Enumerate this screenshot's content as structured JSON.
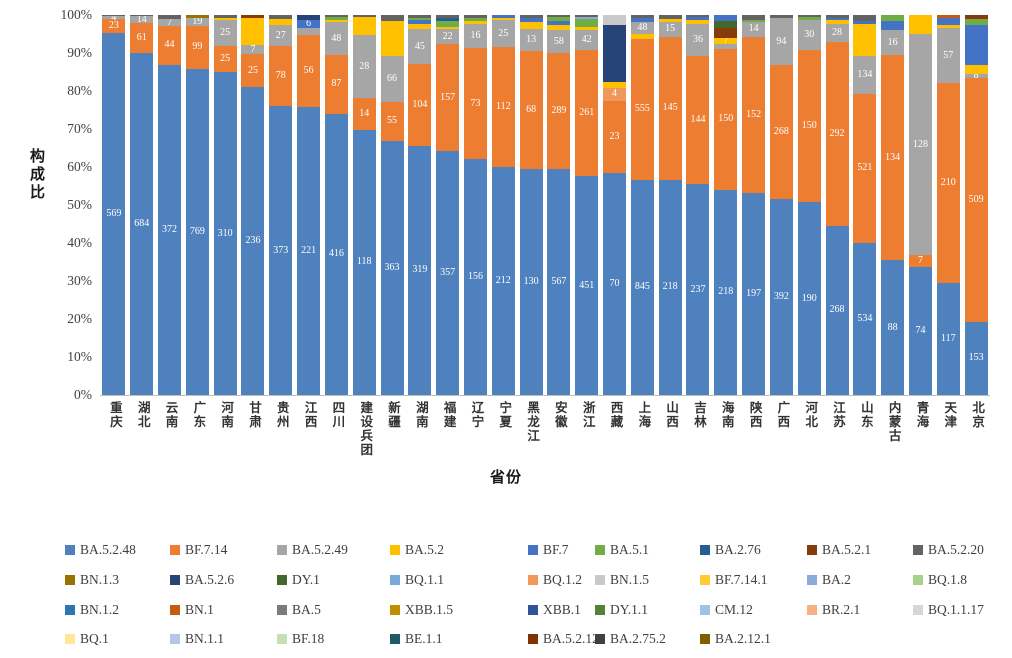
{
  "chart_data": {
    "type": "bar",
    "subtype": "100%-stacked-column",
    "title": "",
    "xlabel": "省份",
    "ylabel": "构成比",
    "ylim": [
      0,
      100
    ],
    "grid": false,
    "legend_position": "bottom",
    "yticks": [
      "0%",
      "10%",
      "20%",
      "30%",
      "40%",
      "50%",
      "60%",
      "70%",
      "80%",
      "90%",
      "100%"
    ],
    "legend": [
      {
        "name": "BA.5.2.48",
        "color": "#4E81BD"
      },
      {
        "name": "BF.7.14",
        "color": "#ED7D31"
      },
      {
        "name": "BA.5.2.49",
        "color": "#A6A6A6"
      },
      {
        "name": "BA.5.2",
        "color": "#FFC000"
      },
      {
        "name": "BF.7",
        "color": "#4472C4"
      },
      {
        "name": "BA.5.1",
        "color": "#70AD47"
      },
      {
        "name": "BA.2.76",
        "color": "#255E91"
      },
      {
        "name": "BA.5.2.1",
        "color": "#843C0C"
      },
      {
        "name": "BA.5.2.20",
        "color": "#636363"
      },
      {
        "name": "BN.1.3",
        "color": "#997300"
      },
      {
        "name": "BA.5.2.6",
        "color": "#264478"
      },
      {
        "name": "DY.1",
        "color": "#43682B"
      },
      {
        "name": "BQ.1.1",
        "color": "#74A9D8"
      },
      {
        "name": "BQ.1.2",
        "color": "#F1975A"
      },
      {
        "name": "BN.1.5",
        "color": "#C9C9C9"
      },
      {
        "name": "BF.7.14.1",
        "color": "#FFCD33"
      },
      {
        "name": "BA.2",
        "color": "#8EAADB"
      },
      {
        "name": "BQ.1.8",
        "color": "#A9D18E"
      },
      {
        "name": "BN.1.2",
        "color": "#2E75B6"
      },
      {
        "name": "BN.1",
        "color": "#C55A11"
      },
      {
        "name": "BA.5",
        "color": "#7B7B7B"
      },
      {
        "name": "XBB.1.5",
        "color": "#BF8F00"
      },
      {
        "name": "XBB.1",
        "color": "#2F5597"
      },
      {
        "name": "DY.1.1",
        "color": "#538135"
      },
      {
        "name": "CM.12",
        "color": "#9DC3E6"
      },
      {
        "name": "BR.2.1",
        "color": "#F4B183"
      },
      {
        "name": "BQ.1.1.17",
        "color": "#D6D6D6"
      },
      {
        "name": "BQ.1",
        "color": "#FFE699"
      },
      {
        "name": "BN.1.1",
        "color": "#B4C7E7"
      },
      {
        "name": "BF.18",
        "color": "#C5E0B4"
      },
      {
        "name": "BE.1.1",
        "color": "#215968"
      },
      {
        "name": "BA.5.2.12",
        "color": "#7F3300"
      },
      {
        "name": "BA.2.75.2",
        "color": "#404040"
      },
      {
        "name": "BA.2.12.1",
        "color": "#7F6000"
      }
    ],
    "bars": [
      {
        "province": "重庆",
        "segments": [
          [
            "BA.5.2.48",
            569,
            "569"
          ],
          [
            "BF.7.14",
            23,
            "23"
          ],
          [
            "BA.5.2.49",
            4,
            "4"
          ],
          [
            "BA.5.2.20",
            2,
            null
          ]
        ]
      },
      {
        "province": "湖北",
        "segments": [
          [
            "BA.5.2.48",
            684,
            "684"
          ],
          [
            "BF.7.14",
            61,
            "61"
          ],
          [
            "BA.5.2.49",
            14,
            "14"
          ],
          [
            "BA.5.2.20",
            2,
            null
          ]
        ]
      },
      {
        "province": "云南",
        "segments": [
          [
            "BA.5.2.48",
            372,
            "372"
          ],
          [
            "BF.7.14",
            44,
            "44"
          ],
          [
            "BA.5.2.49",
            7,
            "7"
          ],
          [
            "BA.5.2.20",
            5,
            null
          ]
        ]
      },
      {
        "province": "广东",
        "segments": [
          [
            "BA.5.2.48",
            769,
            "769"
          ],
          [
            "BF.7.14",
            99,
            "99"
          ],
          [
            "BA.5.2.49",
            19,
            "19"
          ],
          [
            "BN.1.3",
            8,
            null
          ]
        ]
      },
      {
        "province": "河南",
        "segments": [
          [
            "BA.5.2.48",
            310,
            "310"
          ],
          [
            "BF.7.14",
            25,
            "25"
          ],
          [
            "BA.5.2.49",
            25,
            "25"
          ],
          [
            "BA.5.2",
            2,
            null
          ],
          [
            "BA.5.2.20",
            3,
            null
          ]
        ]
      },
      {
        "province": "甘肃",
        "segments": [
          [
            "BA.5.2.48",
            236,
            "236"
          ],
          [
            "BF.7.14",
            25,
            "25"
          ],
          [
            "BA.5.2.49",
            7,
            "7"
          ],
          [
            "BA.5.2",
            21,
            null
          ],
          [
            "BA.5.2.1",
            2,
            null
          ]
        ]
      },
      {
        "province": "贵州",
        "segments": [
          [
            "BA.5.2.48",
            373,
            "373"
          ],
          [
            "BF.7.14",
            78,
            "78"
          ],
          [
            "BA.5.2.49",
            27,
            "27"
          ],
          [
            "BA.5.2",
            8,
            null
          ],
          [
            "BA.5.2.20",
            5,
            null
          ]
        ]
      },
      {
        "province": "江西",
        "segments": [
          [
            "BA.5.2.48",
            221,
            "221"
          ],
          [
            "BF.7.14",
            56,
            "56"
          ],
          [
            "BA.5.2.49",
            5,
            null
          ],
          [
            "BF.7",
            6,
            "6"
          ],
          [
            "BA.5.2.6",
            4,
            null
          ]
        ]
      },
      {
        "province": "四川",
        "segments": [
          [
            "BA.5.2.48",
            416,
            "416"
          ],
          [
            "BF.7.14",
            87,
            "87"
          ],
          [
            "BA.5.2.49",
            48,
            "48"
          ],
          [
            "BA.5.2",
            3,
            null
          ],
          [
            "BA.5.1",
            5,
            null
          ],
          [
            "BA.5.2.20",
            3,
            null
          ]
        ]
      },
      {
        "province": "建设兵团",
        "segments": [
          [
            "BA.5.2.48",
            118,
            "118"
          ],
          [
            "BF.7.14",
            14,
            "14"
          ],
          [
            "BA.5.2.49",
            28,
            "28"
          ],
          [
            "BA.5.2",
            8,
            null
          ],
          [
            "BA.5.2.20",
            1,
            null
          ]
        ]
      },
      {
        "province": "新疆",
        "segments": [
          [
            "BA.5.2.48",
            363,
            "363"
          ],
          [
            "BF.7.14",
            55,
            "55"
          ],
          [
            "BA.5.2.49",
            66,
            "66"
          ],
          [
            "BA.5.2",
            50,
            null
          ],
          [
            "BA.5.2.20",
            8,
            null
          ]
        ]
      },
      {
        "province": "湖南",
        "segments": [
          [
            "BA.5.2.48",
            319,
            "319"
          ],
          [
            "BF.7.14",
            104,
            "104"
          ],
          [
            "BA.5.2.49",
            45,
            "45"
          ],
          [
            "BA.5.2",
            6,
            null
          ],
          [
            "BF.7",
            5,
            null
          ],
          [
            "BA.5.1",
            3,
            null
          ],
          [
            "BA.5.2.20",
            4,
            null
          ]
        ]
      },
      {
        "province": "福建",
        "segments": [
          [
            "BA.5.2.48",
            357,
            "357"
          ],
          [
            "BF.7.14",
            157,
            "157"
          ],
          [
            "BA.5.2.49",
            22,
            "22"
          ],
          [
            "BA.5.2",
            4,
            null
          ],
          [
            "BA.5.1",
            8,
            null
          ],
          [
            "BA.2.76",
            5,
            null
          ],
          [
            "BA.5.2.20",
            4,
            null
          ]
        ]
      },
      {
        "province": "辽宁",
        "segments": [
          [
            "BA.5.2.48",
            156,
            "156"
          ],
          [
            "BF.7.14",
            73,
            "73"
          ],
          [
            "BA.5.2.49",
            16,
            "16"
          ],
          [
            "BA.5.2",
            2,
            null
          ],
          [
            "BA.5.1",
            2,
            null
          ],
          [
            "BA.5.2.20",
            2,
            null
          ]
        ]
      },
      {
        "province": "宁夏",
        "segments": [
          [
            "BA.5.2.48",
            212,
            "212"
          ],
          [
            "BF.7.14",
            112,
            "112"
          ],
          [
            "BA.5.2.49",
            25,
            "25"
          ],
          [
            "BA.5.2",
            2,
            null
          ],
          [
            "BF.7",
            3,
            null
          ]
        ]
      },
      {
        "province": "黑龙江",
        "segments": [
          [
            "BA.5.2.48",
            130,
            "130"
          ],
          [
            "BF.7.14",
            68,
            "68"
          ],
          [
            "BA.5.2.49",
            13,
            "13"
          ],
          [
            "BA.5.2",
            4,
            null
          ],
          [
            "BF.7",
            2,
            null
          ],
          [
            "BA.5.2.20",
            2,
            null
          ]
        ]
      },
      {
        "province": "安徽",
        "segments": [
          [
            "BA.5.2.48",
            567,
            "567"
          ],
          [
            "BF.7.14",
            289,
            "289"
          ],
          [
            "BA.5.2.49",
            58,
            "58"
          ],
          [
            "BA.5.2",
            14,
            null
          ],
          [
            "BF.7",
            10,
            null
          ],
          [
            "BA.5.1",
            8,
            null
          ],
          [
            "BA.5.2.20",
            6,
            null
          ]
        ]
      },
      {
        "province": "浙江",
        "segments": [
          [
            "BA.5.2.48",
            451,
            "451"
          ],
          [
            "BF.7.14",
            261,
            "261"
          ],
          [
            "BA.5.2.49",
            42,
            "42"
          ],
          [
            "BA.5.2",
            6,
            null
          ],
          [
            "BA.5.1",
            16,
            null
          ],
          [
            "BA.2",
            4,
            null
          ],
          [
            "BA.5.2.20",
            4,
            null
          ]
        ]
      },
      {
        "province": "西藏",
        "segments": [
          [
            "BA.5.2.48",
            70,
            "70"
          ],
          [
            "BF.7.14",
            23,
            "23"
          ],
          [
            "BQ.1.2",
            4,
            "4"
          ],
          [
            "BA.5.2",
            2,
            null
          ],
          [
            "BA.5.2.6",
            18,
            null
          ],
          [
            "BN.1.5",
            3,
            null
          ]
        ]
      },
      {
        "province": "上海",
        "segments": [
          [
            "BA.5.2.48",
            845,
            "845"
          ],
          [
            "BF.7.14",
            555,
            "555"
          ],
          [
            "BA.5.2",
            18,
            null
          ],
          [
            "BA.5.2.49",
            48,
            "48"
          ],
          [
            "BF.7",
            15,
            null
          ],
          [
            "BA.5.2.20",
            12,
            null
          ]
        ]
      },
      {
        "province": "山西",
        "segments": [
          [
            "BA.5.2.48",
            218,
            "218"
          ],
          [
            "BF.7.14",
            145,
            "145"
          ],
          [
            "BA.5.2.49",
            15,
            "15"
          ],
          [
            "BA.5.2",
            3,
            null
          ],
          [
            "BA.5.2.20",
            4,
            null
          ]
        ]
      },
      {
        "province": "吉林",
        "segments": [
          [
            "BA.5.2.48",
            237,
            "237"
          ],
          [
            "BF.7.14",
            144,
            "144"
          ],
          [
            "BA.5.2.49",
            36,
            "36"
          ],
          [
            "BA.5.2",
            4,
            null
          ],
          [
            "BF.7",
            4,
            null
          ],
          [
            "BA.5.2.20",
            2,
            null
          ]
        ]
      },
      {
        "province": "海南",
        "segments": [
          [
            "BA.5.2.48",
            218,
            "218"
          ],
          [
            "BF.7.14",
            150,
            "150"
          ],
          [
            "BA.5.2.49",
            5,
            null
          ],
          [
            "BA.5.2",
            7,
            "7"
          ],
          [
            "BA.5.2.1",
            10,
            null
          ],
          [
            "DY.1",
            8,
            null
          ],
          [
            "BF.7",
            6,
            null
          ]
        ]
      },
      {
        "province": "陕西",
        "segments": [
          [
            "BA.5.2.48",
            197,
            "197"
          ],
          [
            "BF.7.14",
            152,
            "152"
          ],
          [
            "BA.5.2.49",
            14,
            "14"
          ],
          [
            "BA.5.1",
            2,
            null
          ],
          [
            "BA.5.2.20",
            5,
            null
          ]
        ]
      },
      {
        "province": "广西",
        "segments": [
          [
            "BA.5.2.48",
            392,
            "392"
          ],
          [
            "BF.7.14",
            268,
            "268"
          ],
          [
            "BA.5.2.49",
            94,
            "94"
          ],
          [
            "BA.5.2.20",
            6,
            null
          ]
        ]
      },
      {
        "province": "河北",
        "segments": [
          [
            "BA.5.2.48",
            190,
            "190"
          ],
          [
            "BF.7.14",
            150,
            "150"
          ],
          [
            "BA.5.2.49",
            30,
            "30"
          ],
          [
            "BA.5.1",
            3,
            null
          ],
          [
            "BA.5.2.20",
            2,
            null
          ]
        ]
      },
      {
        "province": "江苏",
        "segments": [
          [
            "BA.5.2.48",
            268,
            "268"
          ],
          [
            "BF.7.14",
            292,
            "292"
          ],
          [
            "BA.5.2.49",
            28,
            "28"
          ],
          [
            "BA.5.2",
            6,
            null
          ],
          [
            "BF.7",
            4,
            null
          ],
          [
            "BA.5.2.20",
            4,
            null
          ]
        ]
      },
      {
        "province": "山东",
        "segments": [
          [
            "BA.5.2.48",
            534,
            "534"
          ],
          [
            "BF.7.14",
            521,
            "521"
          ],
          [
            "BA.5.2.49",
            134,
            "134"
          ],
          [
            "BA.5.2",
            110,
            null
          ],
          [
            "BF.7",
            13,
            null
          ],
          [
            "BA.5.2.20",
            20,
            null
          ]
        ]
      },
      {
        "province": "内蒙古",
        "segments": [
          [
            "BA.5.2.48",
            88,
            "88"
          ],
          [
            "BF.7.14",
            134,
            "134"
          ],
          [
            "BA.5.2.49",
            16,
            "16"
          ],
          [
            "BF.7",
            6,
            null
          ],
          [
            "BA.5.1",
            4,
            null
          ]
        ]
      },
      {
        "province": "青海",
        "segments": [
          [
            "BA.5.2.48",
            74,
            "74"
          ],
          [
            "BF.7.14",
            7,
            "7"
          ],
          [
            "BA.5.2.49",
            128,
            "128"
          ],
          [
            "BA.5.2",
            11,
            null
          ]
        ]
      },
      {
        "province": "天津",
        "segments": [
          [
            "BA.5.2.48",
            117,
            "117"
          ],
          [
            "BF.7.14",
            210,
            "210"
          ],
          [
            "BA.5.2.49",
            57,
            "57"
          ],
          [
            "BA.5.2",
            4,
            null
          ],
          [
            "BF.7",
            7,
            null
          ],
          [
            "BN.1",
            3,
            null
          ]
        ]
      },
      {
        "province": "北京",
        "segments": [
          [
            "BA.5.2.48",
            153,
            "153"
          ],
          [
            "BF.7.14",
            509,
            "509"
          ],
          [
            "BA.5.2.49",
            8,
            "8"
          ],
          [
            "BA.5.2",
            20,
            null
          ],
          [
            "BF.7",
            84,
            null
          ],
          [
            "BA.5.1",
            12,
            null
          ],
          [
            "BA.5.2.1",
            8,
            null
          ]
        ]
      }
    ]
  }
}
